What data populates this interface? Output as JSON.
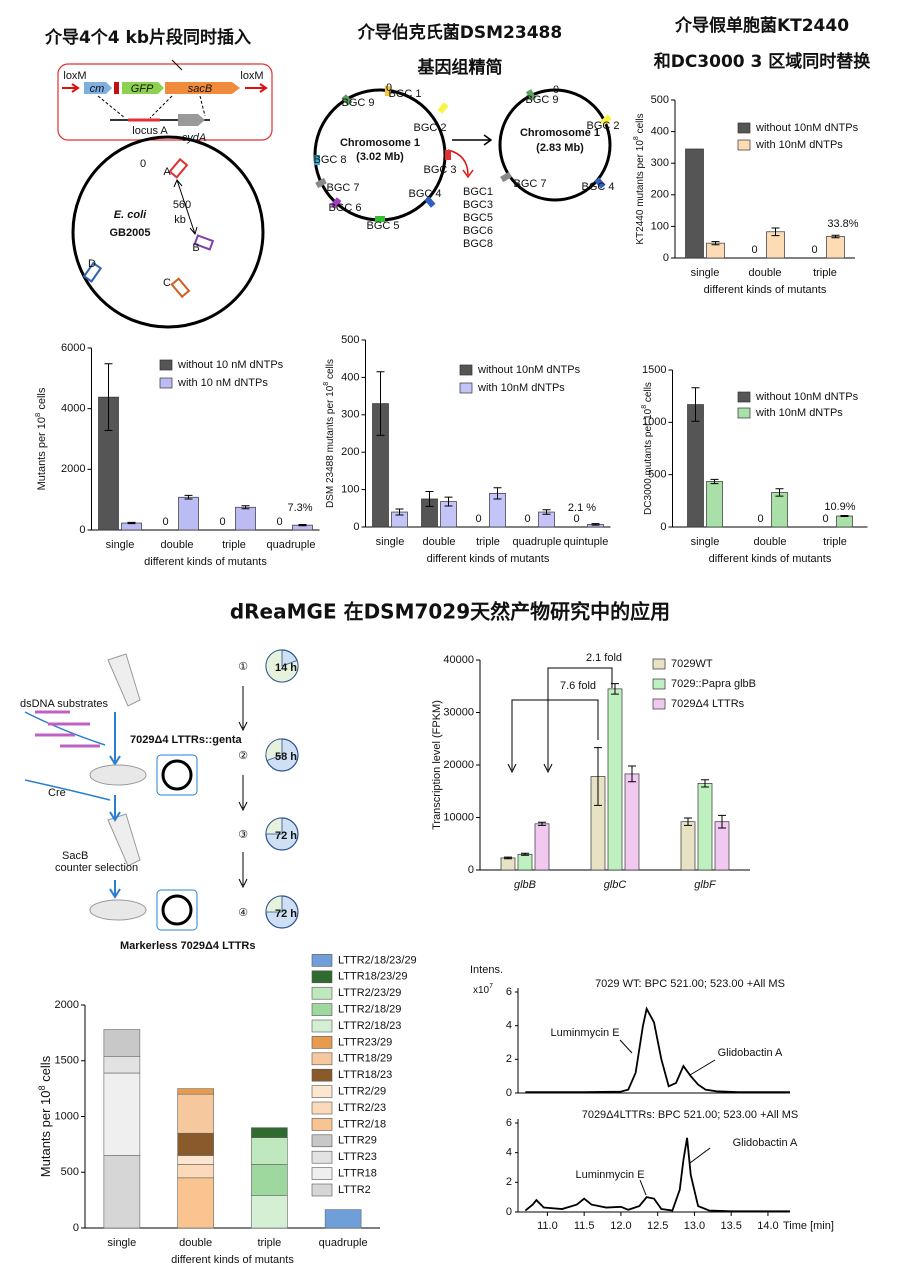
{
  "panel_titles": [
    "介导4个4 kb片段同时插入",
    "介导伯克氏菌DSM23488",
    "基因组精简",
    "介导假单胞菌KT2440",
    "和DC3000 3 区域同时替换",
    "dReaMGE 在DSM7029天然产物研究中的应用"
  ],
  "ecoli_diagram": {
    "labels": [
      "loxM",
      "cm",
      "GFP",
      "sacB",
      "loxM",
      "locus A",
      "cydA",
      "0",
      "A",
      "560",
      "kb",
      "B",
      "C",
      "D",
      "E. coli",
      "GB2005"
    ]
  },
  "dsm_diagram": {
    "labels": [
      "BGC 1",
      "BGC 2",
      "BGC 3",
      "BGC 4",
      "BGC 5",
      "BGC 6",
      "BGC 7",
      "BGC 8",
      "BGC 9",
      "0",
      "Chromosome 1",
      "(3.02 Mb)",
      "BGC1",
      "BGC3",
      "BGC5",
      "BGC6",
      "BGC8",
      "BGC 9",
      "0",
      "BGC 2",
      "BGC 4",
      "BGC 7",
      "Chromosome 1",
      "(2.83 Mb)"
    ]
  },
  "workflow": {
    "labels": [
      "dsDNA substrates",
      "7029Δ4 LTTRs::genta",
      "Cre",
      "SacB",
      "counter selection",
      "Markerless 7029Δ4 LTTRs"
    ],
    "steps": [
      "①",
      "②",
      "③",
      "④"
    ],
    "times": [
      "14 h",
      "58 h",
      "72 h",
      "72 h"
    ]
  },
  "chart_data": [
    {
      "type": "bar",
      "ylabel": [
        "KT2440 mutants per 10",
        "8",
        " cells"
      ],
      "xlabel": "different kinds of mutants",
      "categories": [
        "single",
        "double",
        "triple"
      ],
      "ylim": [
        0,
        500
      ],
      "yticks": [
        0,
        100,
        200,
        300,
        400,
        500
      ],
      "series": [
        {
          "name": "without 10nM dNTPs",
          "color": "#555555",
          "values": [
            345,
            0,
            0
          ],
          "value_labels": [
            null,
            "0",
            "0"
          ]
        },
        {
          "name": "with 10nM dNTPs",
          "color": "#fddcb5",
          "values": [
            47,
            83,
            68
          ],
          "errors": [
            5,
            12,
            4
          ]
        }
      ],
      "annotation": "33.8%"
    },
    {
      "type": "bar",
      "ylabel": [
        "Mutants per 10",
        "8",
        " cells"
      ],
      "xlabel": "different kinds of mutants",
      "categories": [
        "single",
        "double",
        "triple",
        "quadruple"
      ],
      "ylim": [
        0,
        6000
      ],
      "yticks": [
        0,
        2000,
        4000,
        6000
      ],
      "series": [
        {
          "name": "without 10 nM dNTPs",
          "color": "#555555",
          "values": [
            4380,
            0,
            0,
            0
          ],
          "errors": [
            1100,
            null,
            null,
            null
          ],
          "value_labels": [
            null,
            "0",
            "0",
            "0"
          ]
        },
        {
          "name": "with 10 nM dNTPs",
          "color": "#bcbcf5",
          "values": [
            230,
            1080,
            750,
            160
          ],
          "errors": [
            20,
            60,
            50,
            20
          ]
        }
      ],
      "annotation": "7.3%"
    },
    {
      "type": "bar",
      "ylabel": [
        "DSM 23488 mutants per 10",
        "8",
        " cells"
      ],
      "xlabel": "different kinds of mutants",
      "categories": [
        "single",
        "double",
        "triple",
        "quadruple",
        "quintuple"
      ],
      "ylim": [
        0,
        500
      ],
      "yticks": [
        0,
        100,
        200,
        300,
        400,
        500
      ],
      "series": [
        {
          "name": "without 10nM dNTPs",
          "color": "#555555",
          "values": [
            330,
            75,
            0,
            0,
            0
          ],
          "errors": [
            85,
            20,
            null,
            null,
            null
          ],
          "value_labels": [
            null,
            null,
            "0",
            "0",
            "0"
          ]
        },
        {
          "name": "with 10nM dNTPs",
          "color": "#c4c4f8",
          "values": [
            40,
            68,
            90,
            40,
            7
          ],
          "errors": [
            8,
            12,
            15,
            6,
            2
          ]
        }
      ],
      "annotation": "2.1 %"
    },
    {
      "type": "bar",
      "ylabel": [
        "DC3000 mutants per 10",
        "8",
        " cells"
      ],
      "xlabel": "different kinds of mutants",
      "categories": [
        "single",
        "double",
        "triple"
      ],
      "ylim": [
        0,
        1500
      ],
      "yticks": [
        0,
        500,
        1000,
        1500
      ],
      "series": [
        {
          "name": "without 10nM dNTPs",
          "color": "#555555",
          "values": [
            1170,
            0,
            0
          ],
          "errors": [
            160,
            null,
            null
          ],
          "value_labels": [
            null,
            "0",
            "0"
          ]
        },
        {
          "name": "with 10nM dNTPs",
          "color": "#a8e0a8",
          "values": [
            435,
            330,
            105
          ],
          "errors": [
            20,
            35,
            5
          ]
        }
      ],
      "annotation": "10.9%"
    },
    {
      "type": "bar",
      "ylabel": "Transcription level (FPKM)",
      "categories": [
        "glbB",
        "glbC",
        "glbF"
      ],
      "italic_categories": true,
      "ylim": [
        0,
        40000
      ],
      "yticks": [
        0,
        10000,
        20000,
        30000,
        40000
      ],
      "series": [
        {
          "name": "7029WT",
          "color": "#e8e2c4",
          "values": [
            2300,
            17800,
            9200
          ],
          "errors": [
            150,
            5500,
            700
          ]
        },
        {
          "name": "7029::Papra glbB",
          "color": "#bff0bf",
          "values": [
            3000,
            34500,
            16500
          ],
          "errors": [
            200,
            1000,
            700
          ]
        },
        {
          "name": "7029Δ4 LTTRs",
          "color": "#f0c8f0",
          "values": [
            8800,
            18300,
            9200
          ],
          "errors": [
            300,
            1500,
            1200
          ]
        }
      ],
      "annotations": [
        "2.1 fold",
        "7.6 fold"
      ]
    },
    {
      "type": "stacked_bar",
      "ylabel": [
        "Mutants per 10",
        "8",
        " cells"
      ],
      "xlabel": "different kinds of mutants",
      "categories": [
        "single",
        "double",
        "triple",
        "quadruple"
      ],
      "ylim": [
        0,
        2000
      ],
      "yticks": [
        0,
        500,
        1000,
        1500,
        2000
      ],
      "series": [
        {
          "name": "LTTR2",
          "color": "#d6d6d6",
          "values": [
            650,
            0,
            0,
            0
          ]
        },
        {
          "name": "LTTR18",
          "color": "#efefef",
          "values": [
            740,
            0,
            0,
            0
          ]
        },
        {
          "name": "LTTR23",
          "color": "#e2e2e2",
          "values": [
            150,
            0,
            0,
            0
          ]
        },
        {
          "name": "LTTR29",
          "color": "#c8c8c8",
          "values": [
            240,
            0,
            0,
            0
          ]
        },
        {
          "name": "LTTR2/18",
          "color": "#f9c48f",
          "values": [
            0,
            450,
            0,
            0
          ]
        },
        {
          "name": "LTTR2/23",
          "color": "#fbd9b9",
          "values": [
            0,
            120,
            0,
            0
          ]
        },
        {
          "name": "LTTR2/29",
          "color": "#fce6cf",
          "values": [
            0,
            80,
            0,
            0
          ]
        },
        {
          "name": "LTTR18/23",
          "color": "#8a5a2b",
          "values": [
            0,
            200,
            0,
            0
          ]
        },
        {
          "name": "LTTR18/29",
          "color": "#f6c89d",
          "values": [
            0,
            350,
            0,
            0
          ]
        },
        {
          "name": "LTTR23/29",
          "color": "#e89a4e",
          "values": [
            0,
            50,
            0,
            0
          ]
        },
        {
          "name": "LTTR2/18/23",
          "color": "#d5efd5",
          "values": [
            0,
            0,
            290,
            0
          ]
        },
        {
          "name": "LTTR2/18/29",
          "color": "#9ed89e",
          "values": [
            0,
            0,
            280,
            0
          ]
        },
        {
          "name": "LTTR2/23/29",
          "color": "#bfe8bf",
          "values": [
            0,
            0,
            240,
            0
          ]
        },
        {
          "name": "LTTR18/23/29",
          "color": "#2f6b2f",
          "values": [
            0,
            0,
            90,
            0
          ]
        },
        {
          "name": "LTTR2/18/23/29",
          "color": "#6f9fd8",
          "values": [
            0,
            0,
            0,
            165
          ]
        }
      ]
    },
    {
      "type": "line",
      "title": "7029 WT: BPC 521.00; 523.00 +All MS",
      "ylabel": "Intens.",
      "yscale_label": [
        "x10",
        "7"
      ],
      "color": "#000000",
      "xlim": [
        10.6,
        14.3
      ],
      "ylim": [
        0,
        6
      ],
      "yticks": [
        0,
        2,
        4,
        6
      ],
      "x": [
        10.7,
        11.0,
        11.5,
        12.0,
        12.1,
        12.2,
        12.3,
        12.35,
        12.45,
        12.55,
        12.65,
        12.75,
        12.85,
        12.95,
        13.05,
        13.15,
        13.3,
        13.6,
        14.0,
        14.3
      ],
      "values": [
        0.05,
        0.05,
        0.05,
        0.08,
        0.2,
        1.2,
        4.0,
        5.0,
        4.2,
        2.0,
        0.4,
        0.6,
        1.6,
        1.0,
        0.5,
        0.2,
        0.1,
        0.05,
        0.05,
        0.05
      ],
      "annotations": [
        "Luminmycin E",
        "Glidobactin A"
      ]
    },
    {
      "type": "line",
      "title": "7029Δ4LTTRs: BPC 521.00; 523.00 +All MS",
      "xlabel": "Time [min]",
      "color": "#000000",
      "xlim": [
        10.6,
        14.3
      ],
      "ylim": [
        0,
        6
      ],
      "yticks": [
        0,
        2,
        4,
        6
      ],
      "xticks": [
        {
          "value": 11,
          "label": "11.0"
        },
        11.5,
        {
          "value": 12,
          "label": "12.0"
        },
        12.5,
        {
          "value": 13,
          "label": "13.0"
        },
        13.5,
        {
          "value": 14,
          "label": "14.0"
        }
      ],
      "x": [
        10.7,
        10.8,
        10.85,
        10.95,
        11.2,
        11.4,
        11.5,
        11.6,
        11.8,
        12.0,
        12.1,
        12.25,
        12.35,
        12.45,
        12.55,
        12.7,
        12.8,
        12.85,
        12.9,
        12.95,
        13.05,
        13.2,
        13.5,
        14.0,
        14.3
      ],
      "values": [
        0.1,
        0.5,
        0.8,
        0.3,
        0.2,
        0.5,
        0.9,
        0.5,
        0.3,
        0.35,
        0.15,
        0.4,
        1.0,
        0.9,
        0.2,
        0.1,
        1.5,
        3.5,
        5.0,
        2.5,
        0.4,
        0.1,
        0.05,
        0.05,
        0.05
      ],
      "annotations": [
        "Luminmycin E",
        "Glidobactin A"
      ]
    }
  ]
}
